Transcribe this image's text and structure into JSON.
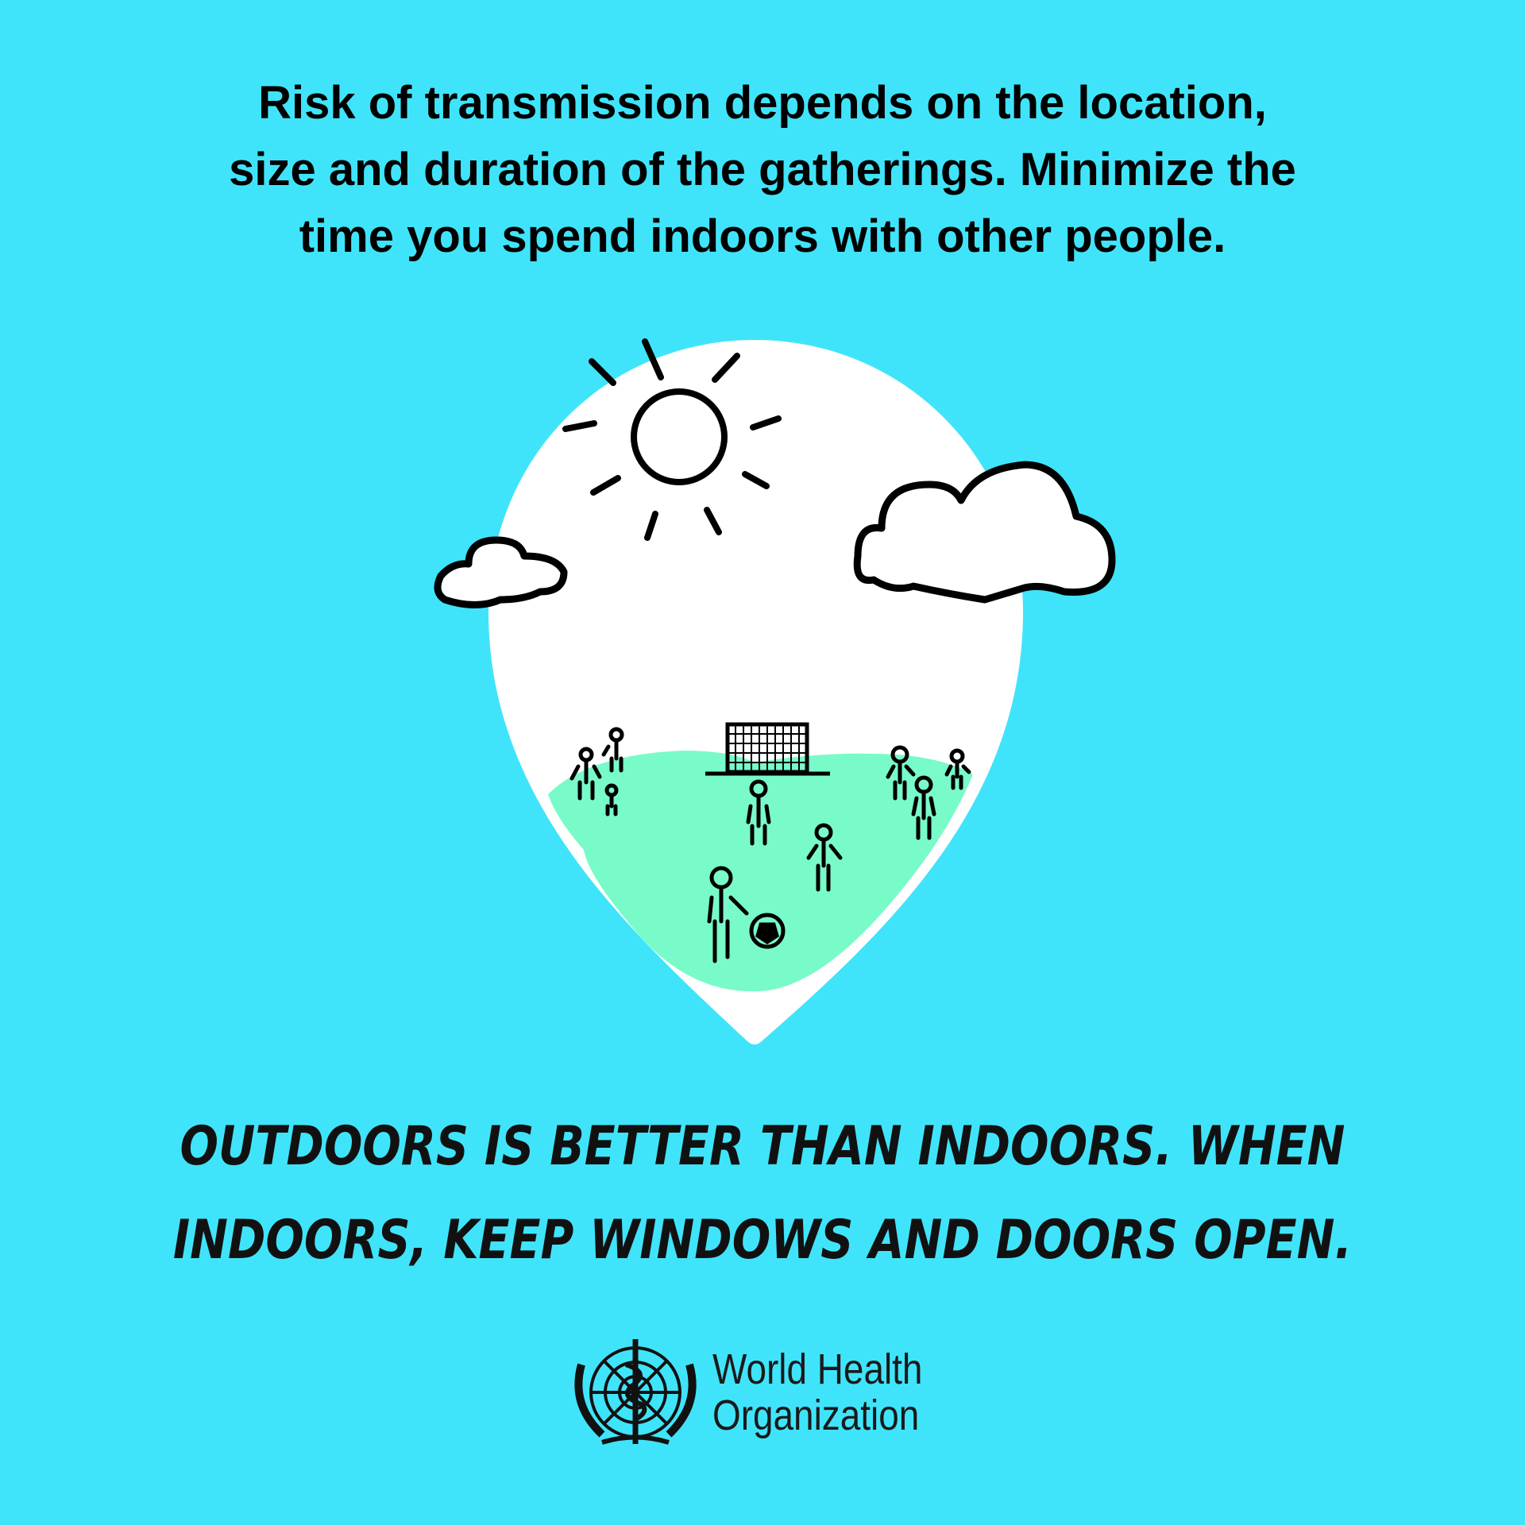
{
  "headline": {
    "line1": "Risk of transmission depends on the location,",
    "line2": "size and duration of the gatherings. Minimize the",
    "line3": "time you spend indoors with other people."
  },
  "illustration": {
    "icons": [
      "location-pin-icon",
      "sun-icon",
      "cloud-icon",
      "soccer-goal-icon",
      "person-icon",
      "soccer-ball-icon"
    ],
    "colors": {
      "background": "#40e4fa",
      "pin": "#ffffff",
      "grass": "#78fbc8",
      "ink": "#000000"
    }
  },
  "tagline": {
    "line1": "Outdoors is better than indoors. When",
    "line2": "indoors, keep windows and doors open."
  },
  "logo": {
    "line1": "World Health",
    "line2": "Organization"
  }
}
